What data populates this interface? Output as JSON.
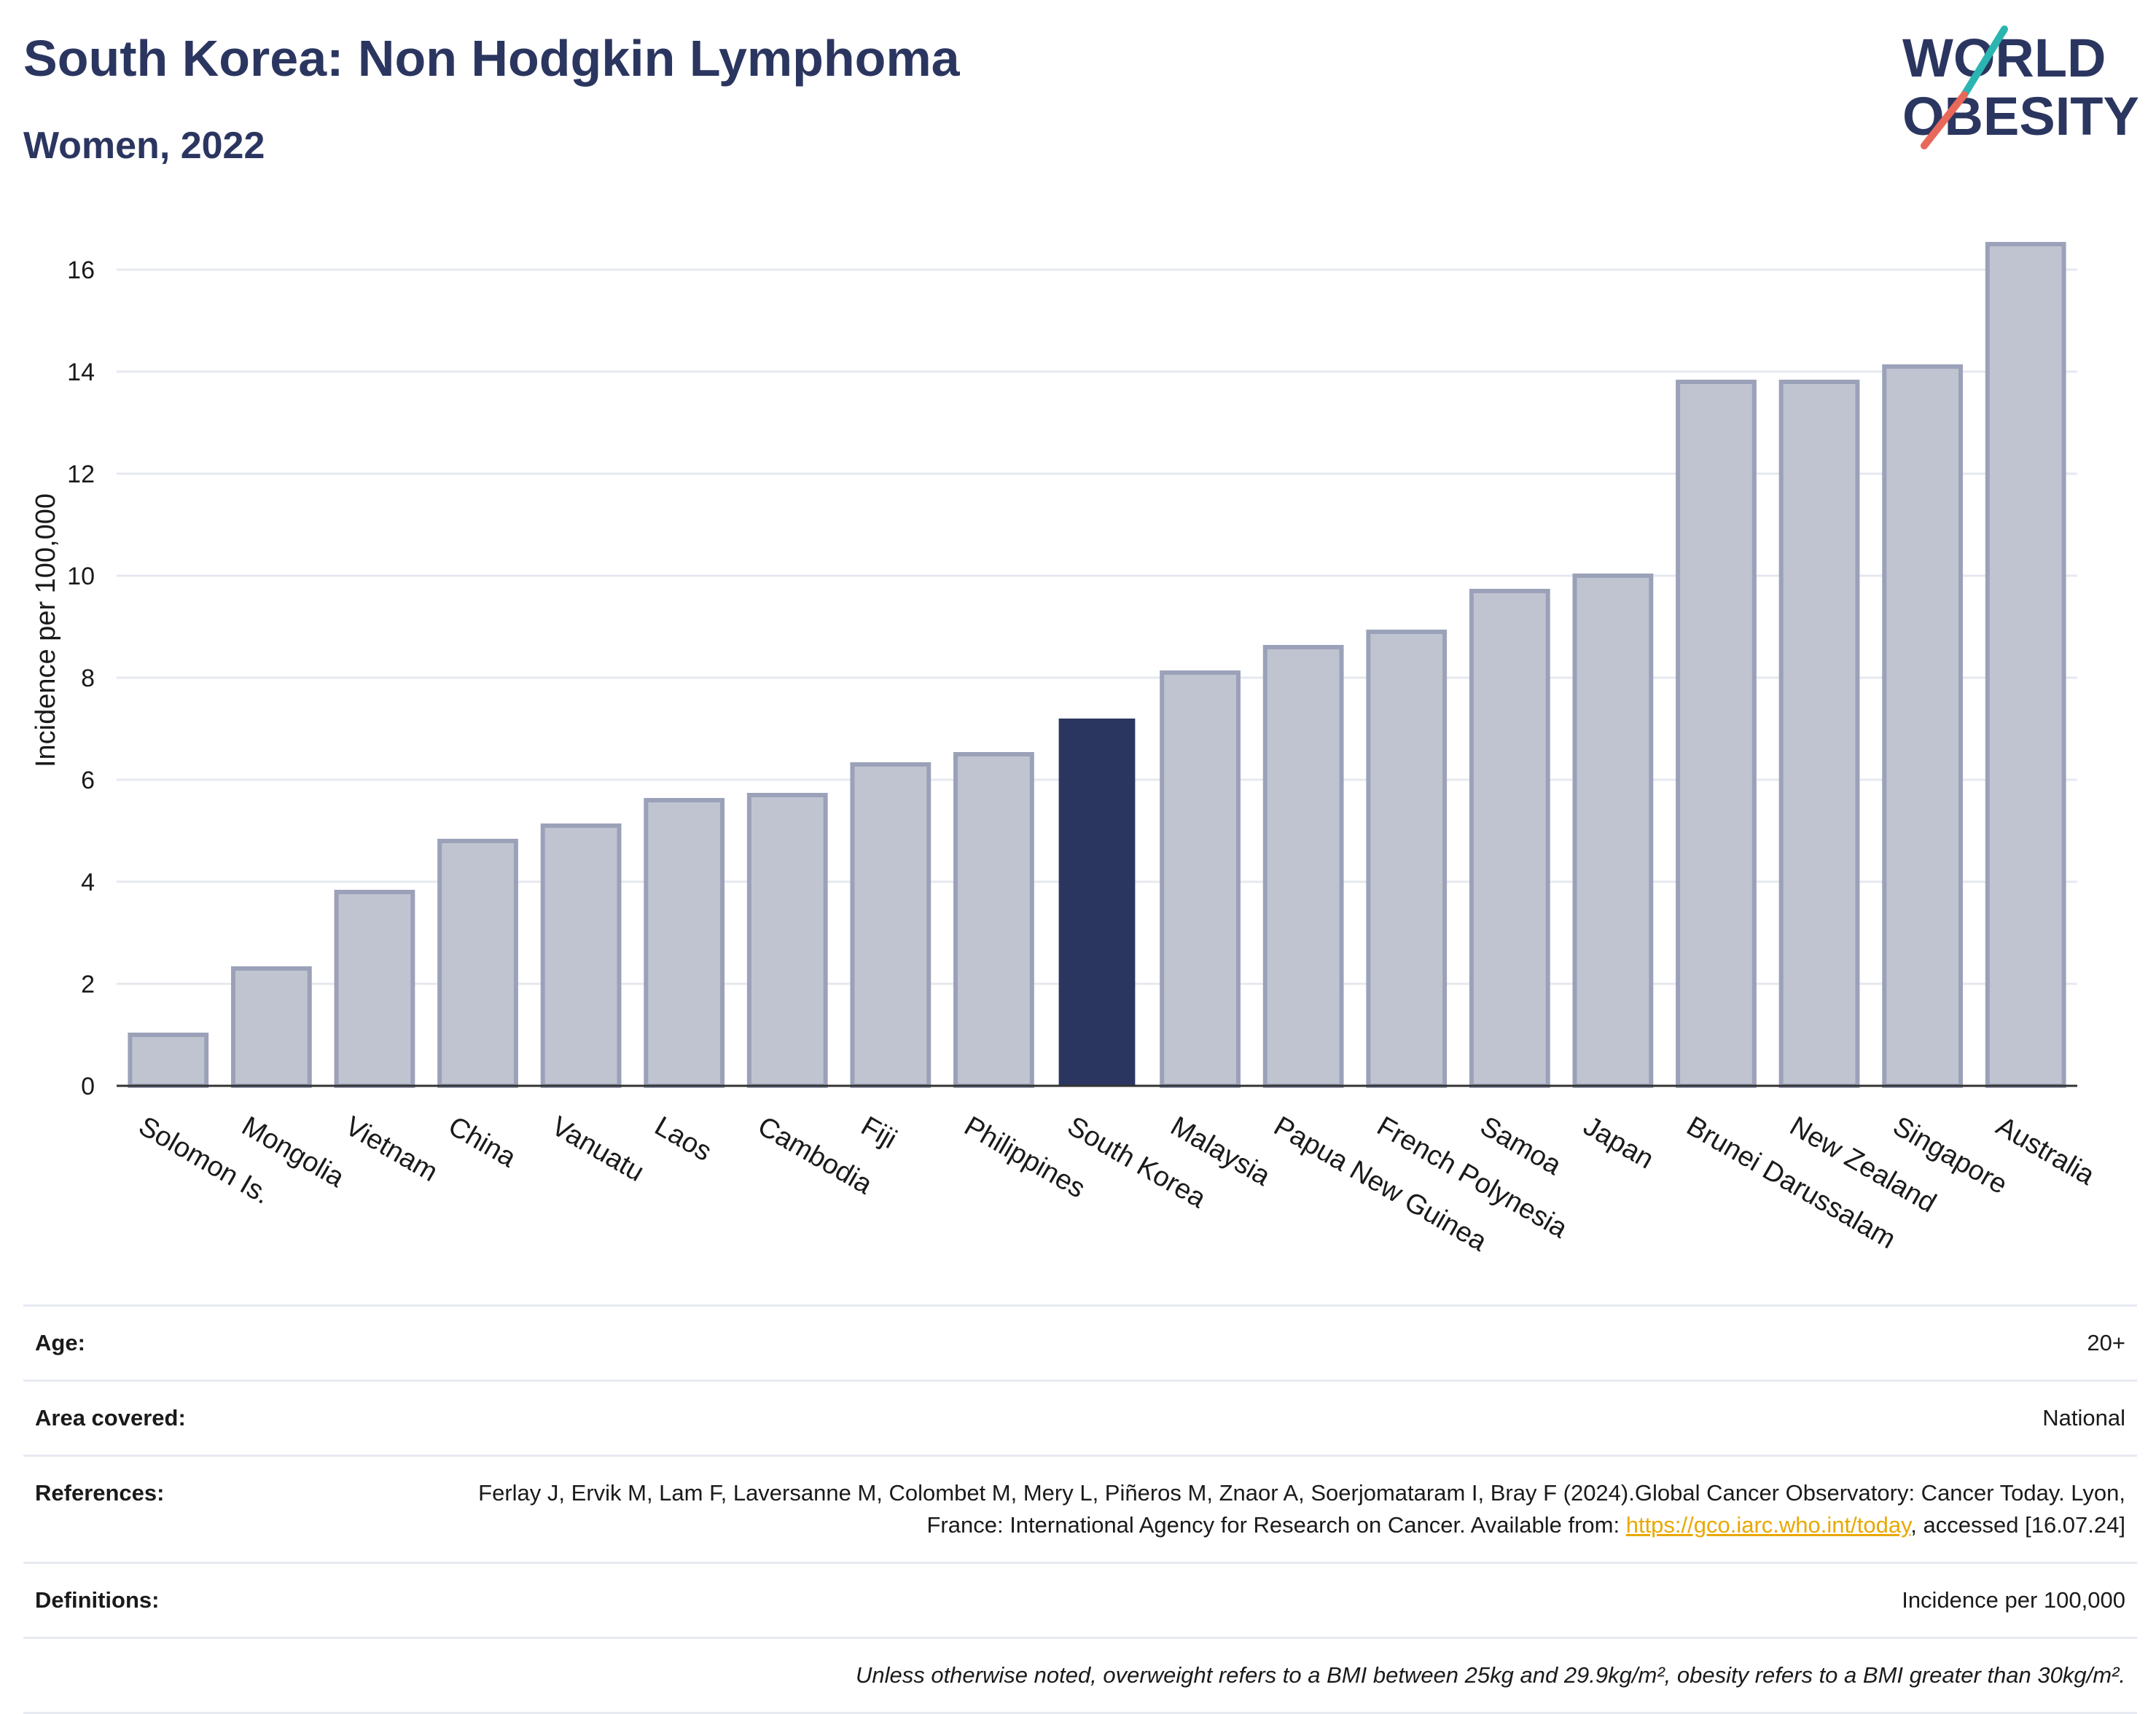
{
  "header": {
    "title": "South Korea: Non Hodgkin Lymphoma",
    "subtitle": "Women, 2022"
  },
  "logo": {
    "line1": "WORLD",
    "line2": "OBESITY",
    "colors": {
      "text": "#2b3660",
      "slash_teal": "#2bb5b0",
      "slash_coral": "#e8685a"
    }
  },
  "chart_data": {
    "type": "bar",
    "title": "",
    "xlabel": "",
    "ylabel": "Incidence per 100,000",
    "ylim": [
      0,
      17
    ],
    "yticks": [
      0,
      2,
      4,
      6,
      8,
      10,
      12,
      14,
      16
    ],
    "grid": true,
    "highlight_category": "South Korea",
    "colors": {
      "bar": "#c0c4d0",
      "bar_edge": "#9ba1b8",
      "highlight": "#2b3660",
      "grid": "#e6e8ef",
      "axis": "#333333"
    },
    "categories": [
      "Solomon Is.",
      "Mongolia",
      "Vietnam",
      "China",
      "Vanuatu",
      "Laos",
      "Cambodia",
      "Fiji",
      "Philippines",
      "South Korea",
      "Malaysia",
      "Papua New Guinea",
      "French Polynesia",
      "Samoa",
      "Japan",
      "Brunei Darussalam",
      "New Zealand",
      "Singapore",
      "Australia"
    ],
    "values": [
      1.0,
      2.3,
      3.8,
      4.8,
      5.1,
      5.6,
      5.7,
      6.3,
      6.5,
      7.2,
      8.1,
      8.6,
      8.9,
      9.7,
      10.0,
      13.8,
      13.8,
      14.1,
      16.5
    ]
  },
  "info": {
    "age_label": "Age:",
    "age_value": "20+",
    "area_label": "Area covered:",
    "area_value": "National",
    "references_label": "References:",
    "references_text": "Ferlay J, Ervik M, Lam F, Laversanne M, Colombet M, Mery L, Piñeros M, Znaor A, Soerjomataram I, Bray F (2024).Global Cancer Observatory: Cancer Today. Lyon, France: International Agency for Research on Cancer. Available from: ",
    "references_link": "https://gco.iarc.who.int/today",
    "references_suffix": ", accessed [16.07.24]",
    "definitions_label": "Definitions:",
    "definitions_value": "Incidence per 100,000",
    "note": "Unless otherwise noted, overweight refers to a BMI between 25kg and 29.9kg/m², obesity refers to a BMI greater than 30kg/m²."
  }
}
